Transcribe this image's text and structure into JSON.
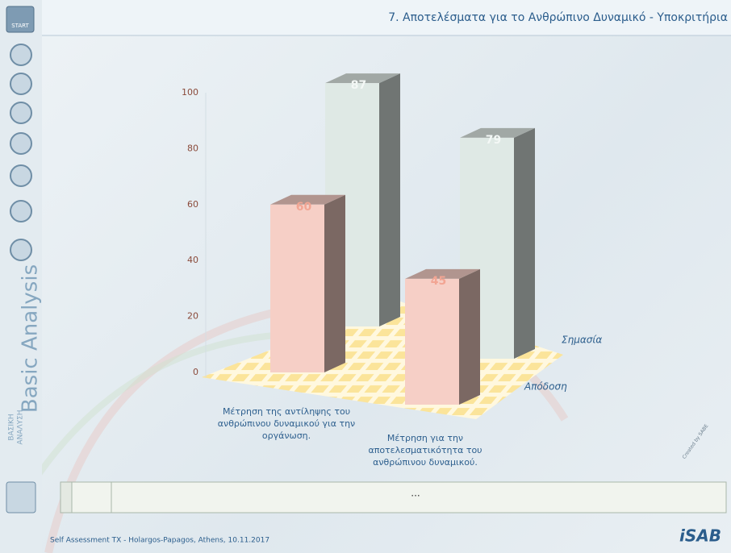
{
  "header": {
    "title": "7. Αποτελέσματα για το Ανθρώπινο Δυναμικό - Υποκριτήρια",
    "start_button": "START"
  },
  "sidebar": {
    "brand": "Basic Analysis",
    "brand_greek": [
      "ΒΑΣΙΚΗ",
      "ΑΝΑΛΥΣΗ"
    ]
  },
  "chart_data": {
    "type": "bar3d",
    "categories": [
      "Μέτρηση της αντίληψης του ανθρώπινου δυναμικού για την οργάνωση.",
      "Μέτρηση για την αποτελεσματικότητα του ανθρώπινου δυναμικού."
    ],
    "series": [
      {
        "name": "Απόδοση",
        "color": "#f6cfc6",
        "label_color": "#f2a593",
        "values": [
          60,
          45
        ]
      },
      {
        "name": "Σημασία",
        "color": "#dfe9e5",
        "label_color": "#f4f8f6",
        "values": [
          87,
          79
        ]
      }
    ],
    "ylim": [
      0,
      100
    ],
    "yticks": [
      0,
      20,
      40,
      60,
      80,
      100
    ],
    "grid": false
  },
  "status_bar": {
    "text": "..."
  },
  "footer": {
    "text": "Self Assessment TX - Holargos-Papagos, Athens, 10.11.2017",
    "credit": "Created by SABE",
    "logo": "iSAB"
  }
}
